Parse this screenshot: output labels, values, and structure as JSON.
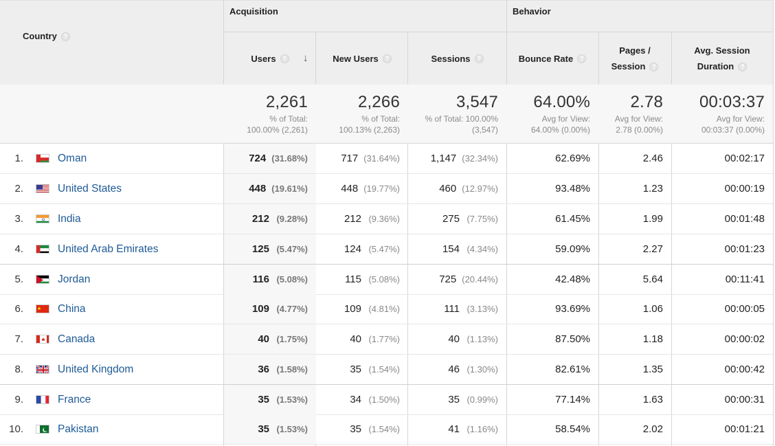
{
  "header": {
    "country_label": "Country",
    "acquisition_label": "Acquisition",
    "behavior_label": "Behavior",
    "columns": {
      "users": "Users",
      "new_users": "New Users",
      "sessions": "Sessions",
      "bounce_rate": "Bounce Rate",
      "pages_session_l1": "Pages /",
      "pages_session_l2": "Session",
      "avg_duration_l1": "Avg. Session",
      "avg_duration_l2": "Duration"
    }
  },
  "totals": {
    "users": {
      "value": "2,261",
      "l1": "% of Total:",
      "l2": "100.00% (2,261)"
    },
    "new_users": {
      "value": "2,266",
      "l1": "% of Total:",
      "l2": "100.13% (2,263)"
    },
    "sessions": {
      "value": "3,547",
      "l1": "% of Total: 100.00%",
      "l2": "(3,547)"
    },
    "bounce_rate": {
      "value": "64.00%",
      "l1": "Avg for View:",
      "l2": "64.00% (0.00%)"
    },
    "pages_session": {
      "value": "2.78",
      "l1": "Avg for View:",
      "l2": "2.78 (0.00%)"
    },
    "avg_duration": {
      "value": "00:03:37",
      "l1": "Avg for View:",
      "l2": "00:03:37 (0.00%)"
    }
  },
  "rows": [
    {
      "rank": "1.",
      "country": "Oman",
      "flag": "oman",
      "users": "724",
      "users_pct": "(31.68%)",
      "new_users": "717",
      "new_users_pct": "(31.64%)",
      "sessions": "1,147",
      "sessions_pct": "(32.34%)",
      "bounce": "62.69%",
      "pages": "2.46",
      "duration": "00:02:17"
    },
    {
      "rank": "2.",
      "country": "United States",
      "flag": "us",
      "users": "448",
      "users_pct": "(19.61%)",
      "new_users": "448",
      "new_users_pct": "(19.77%)",
      "sessions": "460",
      "sessions_pct": "(12.97%)",
      "bounce": "93.48%",
      "pages": "1.23",
      "duration": "00:00:19"
    },
    {
      "rank": "3.",
      "country": "India",
      "flag": "india",
      "users": "212",
      "users_pct": "(9.28%)",
      "new_users": "212",
      "new_users_pct": "(9.36%)",
      "sessions": "275",
      "sessions_pct": "(7.75%)",
      "bounce": "61.45%",
      "pages": "1.99",
      "duration": "00:01:48"
    },
    {
      "rank": "4.",
      "country": "United Arab Emirates",
      "flag": "uae",
      "users": "125",
      "users_pct": "(5.47%)",
      "new_users": "124",
      "new_users_pct": "(5.47%)",
      "sessions": "154",
      "sessions_pct": "(4.34%)",
      "bounce": "59.09%",
      "pages": "2.27",
      "duration": "00:01:23"
    },
    {
      "rank": "5.",
      "country": "Jordan",
      "flag": "jordan",
      "users": "116",
      "users_pct": "(5.08%)",
      "new_users": "115",
      "new_users_pct": "(5.08%)",
      "sessions": "725",
      "sessions_pct": "(20.44%)",
      "bounce": "42.48%",
      "pages": "5.64",
      "duration": "00:11:41"
    },
    {
      "rank": "6.",
      "country": "China",
      "flag": "china",
      "users": "109",
      "users_pct": "(4.77%)",
      "new_users": "109",
      "new_users_pct": "(4.81%)",
      "sessions": "111",
      "sessions_pct": "(3.13%)",
      "bounce": "93.69%",
      "pages": "1.06",
      "duration": "00:00:05"
    },
    {
      "rank": "7.",
      "country": "Canada",
      "flag": "canada",
      "users": "40",
      "users_pct": "(1.75%)",
      "new_users": "40",
      "new_users_pct": "(1.77%)",
      "sessions": "40",
      "sessions_pct": "(1.13%)",
      "bounce": "87.50%",
      "pages": "1.18",
      "duration": "00:00:02"
    },
    {
      "rank": "8.",
      "country": "United Kingdom",
      "flag": "uk",
      "users": "36",
      "users_pct": "(1.58%)",
      "new_users": "35",
      "new_users_pct": "(1.54%)",
      "sessions": "46",
      "sessions_pct": "(1.30%)",
      "bounce": "82.61%",
      "pages": "1.35",
      "duration": "00:00:42"
    },
    {
      "rank": "9.",
      "country": "France",
      "flag": "france",
      "users": "35",
      "users_pct": "(1.53%)",
      "new_users": "34",
      "new_users_pct": "(1.50%)",
      "sessions": "35",
      "sessions_pct": "(0.99%)",
      "bounce": "77.14%",
      "pages": "1.63",
      "duration": "00:00:31"
    },
    {
      "rank": "10.",
      "country": "Pakistan",
      "flag": "pakistan",
      "users": "35",
      "users_pct": "(1.53%)",
      "new_users": "35",
      "new_users_pct": "(1.54%)",
      "sessions": "41",
      "sessions_pct": "(1.16%)",
      "bounce": "58.54%",
      "pages": "2.02",
      "duration": "00:01:21"
    }
  ],
  "colors": {
    "link": "#1e5a96",
    "header_bg": "#eeeeee",
    "totals_bg": "#f7f7f7"
  }
}
